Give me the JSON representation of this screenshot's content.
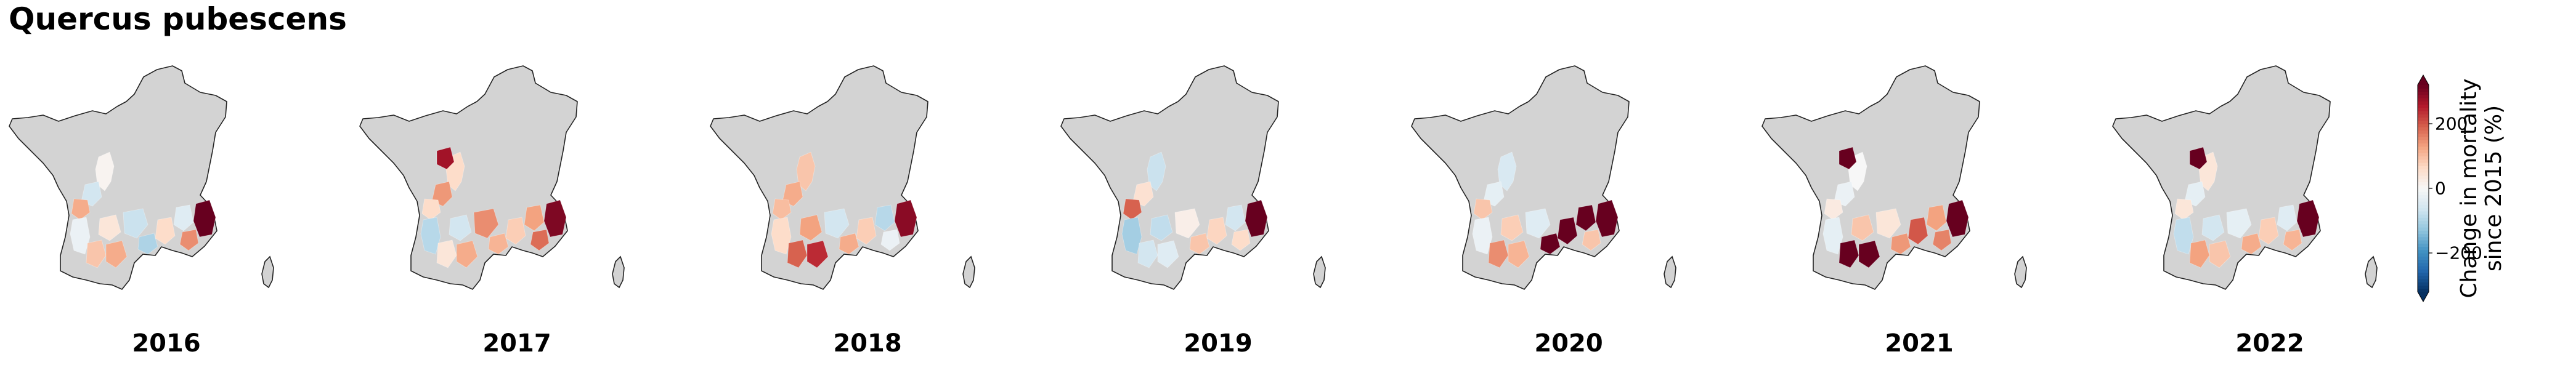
{
  "title": "Quercus pubescens",
  "panels": [
    {
      "year": "2016",
      "regions": [
        {
          "id": "north-center",
          "value": 10
        },
        {
          "id": "west-center",
          "value": -60
        },
        {
          "id": "atlantic-coast",
          "value": 120
        },
        {
          "id": "aquitaine",
          "value": -20
        },
        {
          "id": "pyrenees-west",
          "value": 90
        },
        {
          "id": "pyrenees-center",
          "value": 120
        },
        {
          "id": "toulouse",
          "value": 40
        },
        {
          "id": "massif-central",
          "value": -70
        },
        {
          "id": "central-south",
          "value": -100
        },
        {
          "id": "languedoc",
          "value": 60
        },
        {
          "id": "rhone",
          "value": -40
        },
        {
          "id": "provence-west",
          "value": 150
        },
        {
          "id": "provence-east",
          "value": 330
        }
      ]
    },
    {
      "year": "2017",
      "regions": [
        {
          "id": "north-center",
          "value": 60
        },
        {
          "id": "brittany-south",
          "value": 270
        },
        {
          "id": "west-center",
          "value": 140
        },
        {
          "id": "atlantic-coast",
          "value": 60
        },
        {
          "id": "aquitaine",
          "value": -90
        },
        {
          "id": "pyrenees-west",
          "value": 40
        },
        {
          "id": "pyrenees-center",
          "value": 120
        },
        {
          "id": "toulouse",
          "value": -60
        },
        {
          "id": "massif-central",
          "value": 150
        },
        {
          "id": "central-south",
          "value": 110
        },
        {
          "id": "languedoc",
          "value": 80
        },
        {
          "id": "rhone",
          "value": 130
        },
        {
          "id": "provence-west",
          "value": 180
        },
        {
          "id": "provence-east",
          "value": 300
        }
      ]
    },
    {
      "year": "2018",
      "regions": [
        {
          "id": "north-center",
          "value": 90
        },
        {
          "id": "west-center",
          "value": 120
        },
        {
          "id": "atlantic-coast",
          "value": 100
        },
        {
          "id": "aquitaine",
          "value": 60
        },
        {
          "id": "pyrenees-west",
          "value": 190
        },
        {
          "id": "pyrenees-center",
          "value": 240
        },
        {
          "id": "toulouse",
          "value": 130
        },
        {
          "id": "massif-central",
          "value": -60
        },
        {
          "id": "central-south",
          "value": 120
        },
        {
          "id": "languedoc",
          "value": 80
        },
        {
          "id": "rhone",
          "value": -90
        },
        {
          "id": "provence-west",
          "value": -20
        },
        {
          "id": "provence-east",
          "value": 290
        }
      ]
    },
    {
      "year": "2019",
      "regions": [
        {
          "id": "north-center",
          "value": -70
        },
        {
          "id": "west-center",
          "value": 50
        },
        {
          "id": "atlantic-coast",
          "value": 190
        },
        {
          "id": "aquitaine",
          "value": -110
        },
        {
          "id": "pyrenees-west",
          "value": -60
        },
        {
          "id": "pyrenees-center",
          "value": -40
        },
        {
          "id": "toulouse",
          "value": -80
        },
        {
          "id": "massif-central",
          "value": 20
        },
        {
          "id": "central-south",
          "value": 90
        },
        {
          "id": "languedoc",
          "value": 70
        },
        {
          "id": "rhone",
          "value": -60
        },
        {
          "id": "provence-west",
          "value": 60
        },
        {
          "id": "provence-east",
          "value": 340
        }
      ]
    },
    {
      "year": "2020",
      "regions": [
        {
          "id": "north-center",
          "value": -50
        },
        {
          "id": "west-center",
          "value": -30
        },
        {
          "id": "atlantic-coast",
          "value": 90
        },
        {
          "id": "aquitaine",
          "value": -20
        },
        {
          "id": "pyrenees-west",
          "value": 150
        },
        {
          "id": "pyrenees-center",
          "value": 110
        },
        {
          "id": "toulouse",
          "value": 80
        },
        {
          "id": "massif-central",
          "value": -40
        },
        {
          "id": "central-south",
          "value": 340
        },
        {
          "id": "languedoc",
          "value": 320
        },
        {
          "id": "rhone",
          "value": 330
        },
        {
          "id": "provence-west",
          "value": 90
        },
        {
          "id": "provence-east",
          "value": 340
        }
      ]
    },
    {
      "year": "2021",
      "regions": [
        {
          "id": "north-center",
          "value": 0
        },
        {
          "id": "brittany-south",
          "value": 330
        },
        {
          "id": "west-center",
          "value": -20
        },
        {
          "id": "atlantic-coast",
          "value": 30
        },
        {
          "id": "aquitaine",
          "value": -30
        },
        {
          "id": "pyrenees-west",
          "value": 330
        },
        {
          "id": "pyrenees-center",
          "value": 340
        },
        {
          "id": "toulouse",
          "value": 90
        },
        {
          "id": "massif-central",
          "value": 40
        },
        {
          "id": "central-south",
          "value": 140
        },
        {
          "id": "languedoc",
          "value": 200
        },
        {
          "id": "rhone",
          "value": 130
        },
        {
          "id": "provence-west",
          "value": 160
        },
        {
          "id": "provence-east",
          "value": 330
        }
      ]
    },
    {
      "year": "2022",
      "regions": [
        {
          "id": "north-center",
          "value": 40
        },
        {
          "id": "brittany-south",
          "value": 330
        },
        {
          "id": "west-center",
          "value": -30
        },
        {
          "id": "atlantic-coast",
          "value": 40
        },
        {
          "id": "aquitaine",
          "value": -80
        },
        {
          "id": "pyrenees-west",
          "value": 130
        },
        {
          "id": "pyrenees-center",
          "value": 90
        },
        {
          "id": "toulouse",
          "value": -60
        },
        {
          "id": "massif-central",
          "value": -30
        },
        {
          "id": "central-south",
          "value": 120
        },
        {
          "id": "languedoc",
          "value": 80
        },
        {
          "id": "rhone",
          "value": -40
        },
        {
          "id": "provence-west",
          "value": 110
        },
        {
          "id": "provence-east",
          "value": 340
        }
      ]
    }
  ],
  "colorbar": {
    "label_line1": "Change in mortality",
    "label_line2": "since 2015 (%)",
    "ticks": [
      {
        "label": "200",
        "value": 200
      },
      {
        "label": "0",
        "value": 0
      },
      {
        "label": "−200",
        "value": -200
      }
    ],
    "vmin": -320,
    "vmax": 320,
    "colormap": "RdBu_r",
    "extend": "both"
  },
  "colors": {
    "land": "#d3d3d3",
    "outline": "#222222",
    "background": "#ffffff"
  }
}
